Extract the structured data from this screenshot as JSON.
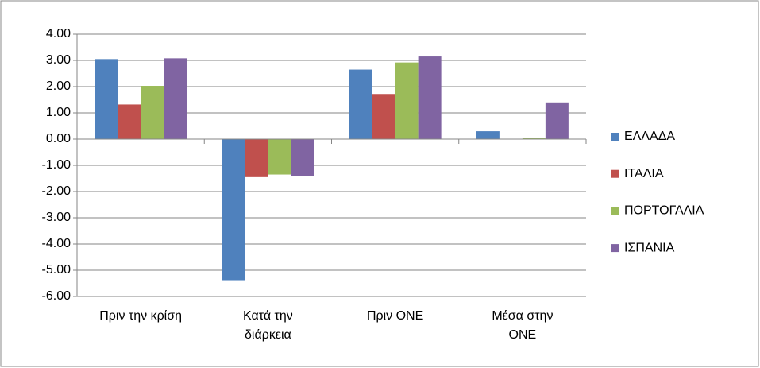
{
  "chart_data": {
    "type": "bar",
    "categories": [
      "Πριν την κρίση",
      "Κατά την διάρκεια",
      "Πριν ΟΝΕ",
      "Μέσα στην ΟΝΕ"
    ],
    "series": [
      {
        "name": "ΕΛΛΑΔΑ",
        "color": "#4f81bd",
        "values": [
          3.05,
          -5.38,
          2.65,
          0.3
        ]
      },
      {
        "name": "ΙΤΑΛΙΑ",
        "color": "#c0504d",
        "values": [
          1.32,
          -1.45,
          1.72,
          0
        ]
      },
      {
        "name": "ΠΟΡΤΟΓΑΛΙΑ",
        "color": "#9bbb59",
        "values": [
          2.03,
          -1.35,
          2.92,
          0.05
        ]
      },
      {
        "name": "ΙΣΠΑΝΙΑ",
        "color": "#8064a2",
        "values": [
          3.08,
          -1.4,
          3.15,
          1.4
        ]
      }
    ],
    "ylim": [
      -6,
      4
    ],
    "yticks": [
      {
        "value": 4,
        "label": "4.00"
      },
      {
        "value": 3,
        "label": "3.00"
      },
      {
        "value": 2,
        "label": "2.00"
      },
      {
        "value": 1,
        "label": "1.00"
      },
      {
        "value": 0,
        "label": "0.00"
      },
      {
        "value": -1,
        "label": "-1.00"
      },
      {
        "value": -2,
        "label": "-2.00"
      },
      {
        "value": -3,
        "label": "-3.00"
      },
      {
        "value": -4,
        "label": "-4.00"
      },
      {
        "value": -5,
        "label": "-5.00"
      },
      {
        "value": -6,
        "label": "-6.00"
      }
    ],
    "grid": true,
    "legend": "right"
  }
}
